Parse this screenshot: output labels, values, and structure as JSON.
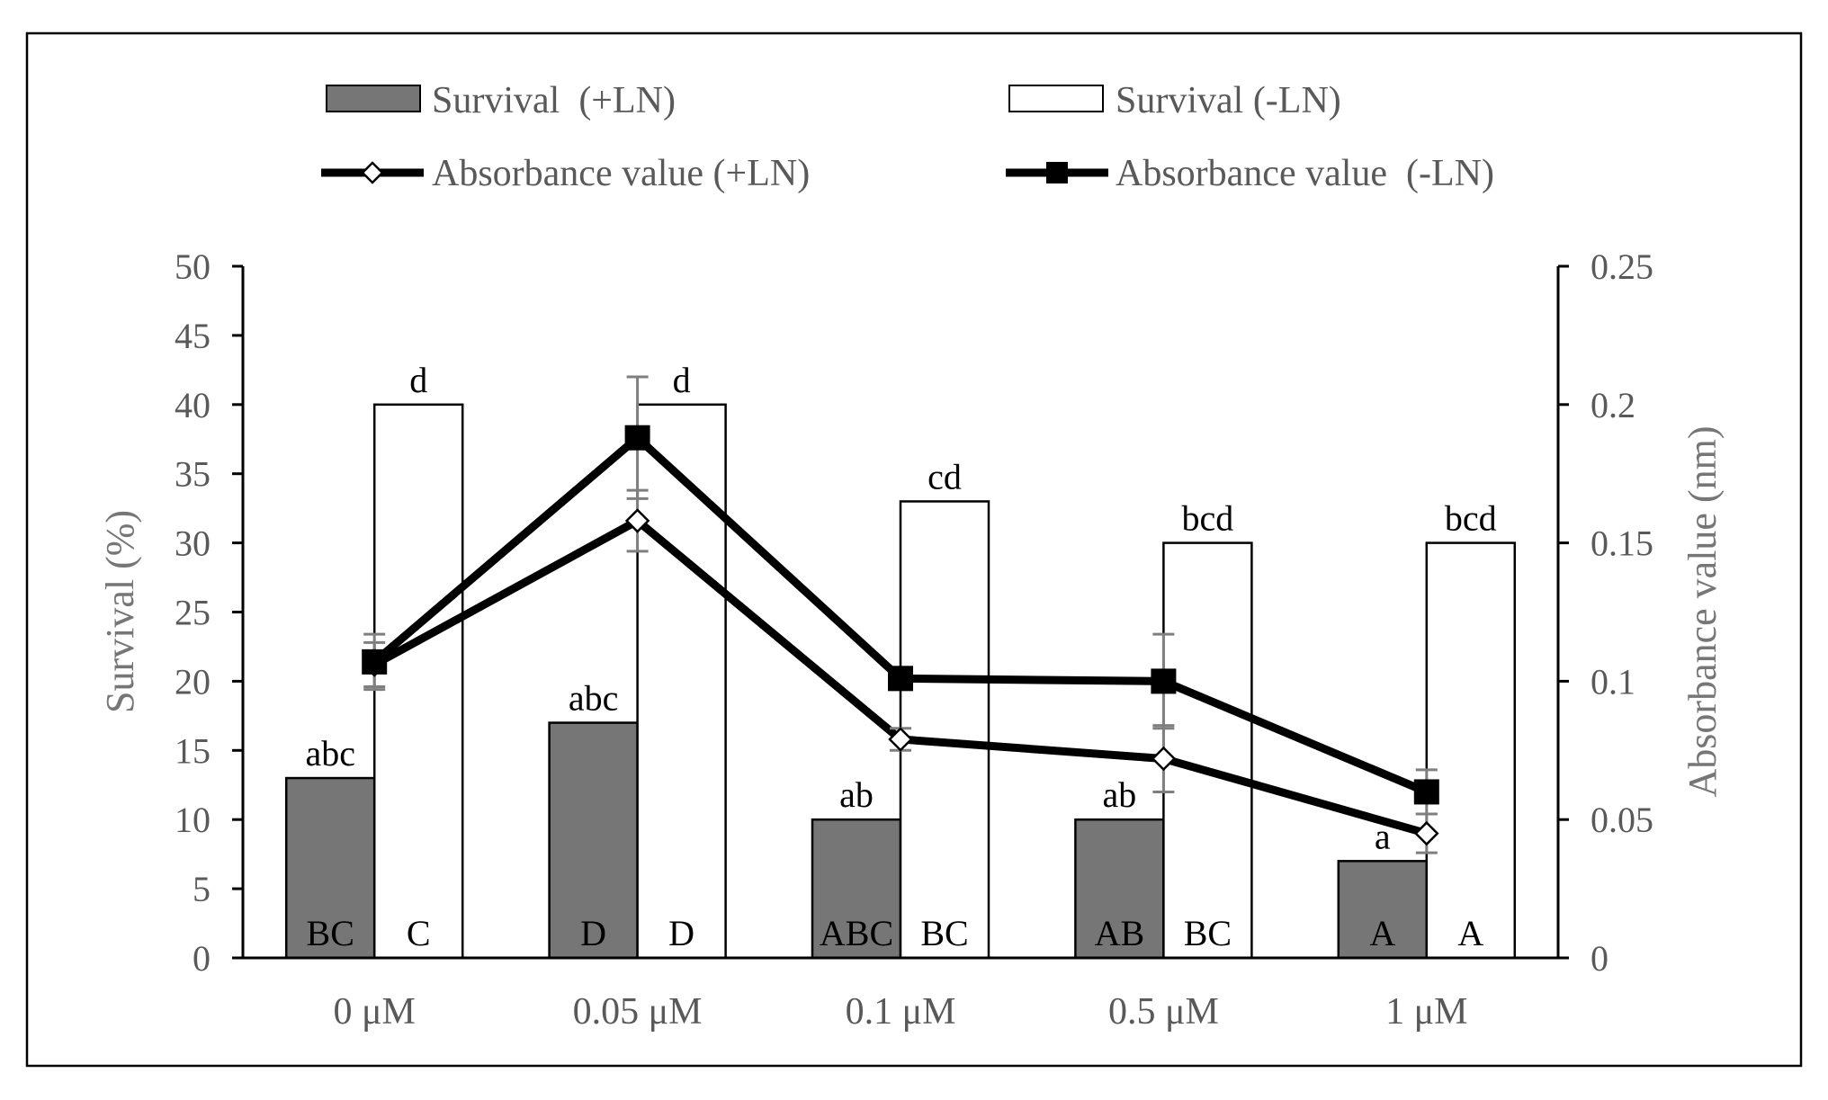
{
  "colors": {
    "bar_plus_ln": "#767676",
    "bar_minus_ln": "#ffffff",
    "line": "#000000",
    "axis_text": "#595959",
    "axis_title": "#767676"
  },
  "legend": {
    "survival_plus": "Survival  (+LN)",
    "survival_minus": "Survival (-LN)",
    "absorbance_plus": "Absorbance value (+LN)",
    "absorbance_minus": "Absorbance value  (-LN)"
  },
  "chart_data": {
    "type": "bar",
    "categories": [
      "0 μM",
      "0.05 μM",
      "0.1 μM",
      "0.5 μM",
      "1 μM"
    ],
    "ylabel": "Survival (%)",
    "y2label": "Absorbance value (nm)",
    "ylim": [
      0,
      50
    ],
    "yticks": [
      0,
      5,
      10,
      15,
      20,
      25,
      30,
      35,
      40,
      45,
      50
    ],
    "ytick_labels": [
      "0",
      "5",
      "10",
      "15",
      "20",
      "25",
      "30",
      "35",
      "40",
      "45",
      "50"
    ],
    "y2lim": [
      0,
      0.25
    ],
    "y2ticks": [
      0,
      0.05,
      0.1,
      0.15,
      0.2,
      0.25
    ],
    "y2tick_labels": [
      "0",
      "0.05",
      "0.1",
      "0.15",
      "0.2",
      "0.25"
    ],
    "series": [
      {
        "name": "Survival  (+LN)",
        "kind": "bar",
        "axis": "left",
        "values": [
          13,
          17,
          10,
          10,
          7
        ],
        "top_labels": [
          "abc",
          "abc",
          "ab",
          "ab",
          "a"
        ],
        "bottom_labels": [
          "BC",
          "D",
          "ABC",
          "AB",
          "A"
        ]
      },
      {
        "name": "Survival (-LN)",
        "kind": "bar",
        "axis": "left",
        "values": [
          40,
          40,
          33,
          30,
          30
        ],
        "top_labels": [
          "d",
          "d",
          "cd",
          "bcd",
          "bcd"
        ],
        "bottom_labels": [
          "C",
          "D",
          "BC",
          "BC",
          "A"
        ]
      },
      {
        "name": "Absorbance value (+LN)",
        "kind": "line",
        "axis": "right",
        "marker": "open-diamond",
        "values": [
          0.106,
          0.158,
          0.079,
          0.072,
          0.045
        ],
        "errors": [
          0.008,
          0.011,
          0.004,
          0.012,
          0.007
        ]
      },
      {
        "name": "Absorbance value  (-LN)",
        "kind": "line",
        "axis": "right",
        "marker": "filled-square",
        "values": [
          0.107,
          0.188,
          0.101,
          0.1,
          0.06
        ],
        "errors": [
          0.01,
          0.022,
          0.004,
          0.017,
          0.008
        ]
      }
    ]
  }
}
